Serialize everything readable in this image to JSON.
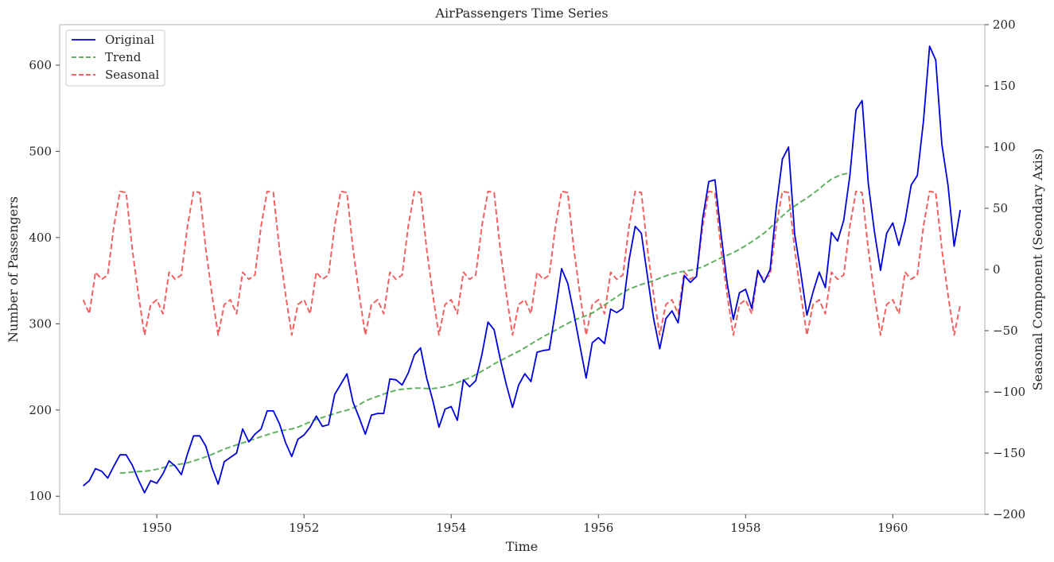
{
  "chart_data": {
    "type": "line",
    "title": "AirPassengers Time Series",
    "xlabel": "Time",
    "ylabel": "Number of Passengers",
    "ylabel_right": "Seasonal Component (Seondary Axis)",
    "xlim": [
      1948.68,
      1961.25
    ],
    "ylim": [
      79,
      647
    ],
    "ylim_right": [
      -200,
      200
    ],
    "x_ticks": [
      1950,
      1952,
      1954,
      1956,
      1958,
      1960
    ],
    "y_ticks": [
      100,
      200,
      300,
      400,
      500,
      600
    ],
    "y_ticks_right": [
      -200,
      -150,
      -100,
      -50,
      0,
      50,
      100,
      150,
      200
    ],
    "grid": false,
    "legend_position": "top-left",
    "x_start": 1949,
    "x_step": 0.0833333,
    "series": [
      {
        "name": "Original",
        "axis": "left",
        "color": "#0000dd",
        "dashed": false,
        "values": [
          112,
          118,
          132,
          129,
          121,
          135,
          148,
          148,
          136,
          119,
          104,
          118,
          115,
          126,
          141,
          135,
          125,
          149,
          170,
          170,
          158,
          133,
          114,
          140,
          145,
          150,
          178,
          163,
          172,
          178,
          199,
          199,
          184,
          162,
          146,
          166,
          171,
          180,
          193,
          181,
          183,
          218,
          230,
          242,
          209,
          191,
          172,
          194,
          196,
          196,
          236,
          235,
          229,
          243,
          264,
          272,
          237,
          211,
          180,
          201,
          204,
          188,
          235,
          227,
          234,
          264,
          302,
          293,
          259,
          229,
          203,
          229,
          242,
          233,
          267,
          269,
          270,
          315,
          364,
          347,
          312,
          274,
          237,
          278,
          284,
          277,
          317,
          313,
          318,
          374,
          413,
          405,
          355,
          306,
          271,
          306,
          315,
          301,
          356,
          348,
          355,
          422,
          465,
          467,
          404,
          347,
          305,
          336,
          340,
          318,
          362,
          348,
          363,
          435,
          491,
          505,
          404,
          359,
          310,
          337,
          360,
          342,
          406,
          396,
          420,
          472,
          548,
          559,
          463,
          407,
          362,
          405,
          417,
          391,
          419,
          461,
          472,
          535,
          622,
          606,
          508,
          461,
          390,
          432
        ]
      },
      {
        "name": "Trend",
        "axis": "left",
        "color": "#4fa84f",
        "dashed": true,
        "offset": 6,
        "values": [
          126.79,
          127.25,
          127.96,
          128.58,
          129.0,
          129.75,
          131.25,
          133.08,
          134.92,
          136.42,
          137.42,
          138.75,
          140.92,
          143.17,
          145.71,
          148.42,
          151.54,
          154.71,
          157.12,
          159.54,
          161.83,
          164.08,
          166.67,
          169.08,
          171.25,
          173.58,
          175.46,
          176.83,
          178.04,
          180.17,
          183.12,
          186.21,
          189.04,
          191.29,
          193.58,
          195.83,
          198.04,
          199.75,
          202.21,
          206.25,
          210.42,
          213.38,
          215.83,
          218.5,
          220.92,
          222.92,
          224.08,
          224.71,
          225.33,
          225.33,
          224.96,
          224.92,
          225.75,
          227.17,
          228.96,
          231.67,
          234.62,
          237.33,
          240.96,
          245.08,
          249.08,
          253.5,
          257.12,
          260.83,
          264.5,
          268.0,
          272.17,
          276.5,
          280.88,
          285.0,
          288.79,
          292.62,
          296.67,
          300.42,
          304.0,
          307.0,
          309.38,
          312.42,
          317.12,
          321.79,
          326.67,
          331.25,
          336.33,
          340.17,
          342.92,
          345.62,
          347.71,
          350.0,
          352.88,
          355.58,
          357.79,
          359.62,
          361.08,
          362.12,
          363.71,
          366.04,
          369.46,
          373.0,
          376.58,
          379.42,
          382.58,
          386.42,
          390.54,
          395.21,
          400.0,
          405.0,
          411.33,
          418.25,
          425.0,
          431.38,
          436.58,
          441.46,
          445.79,
          451.08,
          456.42,
          462.58,
          467.79,
          471.21,
          473.58,
          475.0
        ]
      },
      {
        "name": "Seasonal",
        "axis": "right",
        "color": "#f05050",
        "dashed": true,
        "values": [
          -24.75,
          -36.19,
          -2.24,
          -8.04,
          -4.51,
          35.4,
          63.83,
          62.82,
          16.52,
          -20.64,
          -53.59,
          -28.62,
          -24.75,
          -36.19,
          -2.24,
          -8.04,
          -4.51,
          35.4,
          63.83,
          62.82,
          16.52,
          -20.64,
          -53.59,
          -28.62,
          -24.75,
          -36.19,
          -2.24,
          -8.04,
          -4.51,
          35.4,
          63.83,
          62.82,
          16.52,
          -20.64,
          -53.59,
          -28.62,
          -24.75,
          -36.19,
          -2.24,
          -8.04,
          -4.51,
          35.4,
          63.83,
          62.82,
          16.52,
          -20.64,
          -53.59,
          -28.62,
          -24.75,
          -36.19,
          -2.24,
          -8.04,
          -4.51,
          35.4,
          63.83,
          62.82,
          16.52,
          -20.64,
          -53.59,
          -28.62,
          -24.75,
          -36.19,
          -2.24,
          -8.04,
          -4.51,
          35.4,
          63.83,
          62.82,
          16.52,
          -20.64,
          -53.59,
          -28.62,
          -24.75,
          -36.19,
          -2.24,
          -8.04,
          -4.51,
          35.4,
          63.83,
          62.82,
          16.52,
          -20.64,
          -53.59,
          -28.62,
          -24.75,
          -36.19,
          -2.24,
          -8.04,
          -4.51,
          35.4,
          63.83,
          62.82,
          16.52,
          -20.64,
          -53.59,
          -28.62,
          -24.75,
          -36.19,
          -2.24,
          -8.04,
          -4.51,
          35.4,
          63.83,
          62.82,
          16.52,
          -20.64,
          -53.59,
          -28.62,
          -24.75,
          -36.19,
          -2.24,
          -8.04,
          -4.51,
          35.4,
          63.83,
          62.82,
          16.52,
          -20.64,
          -53.59,
          -28.62,
          -24.75,
          -36.19,
          -2.24,
          -8.04,
          -4.51,
          35.4,
          63.83,
          62.82,
          16.52,
          -20.64,
          -53.59,
          -28.62,
          -24.75,
          -36.19,
          -2.24,
          -8.04,
          -4.51,
          35.4,
          63.83,
          62.82,
          16.52,
          -20.64,
          -53.59,
          -28.62
        ]
      }
    ]
  }
}
